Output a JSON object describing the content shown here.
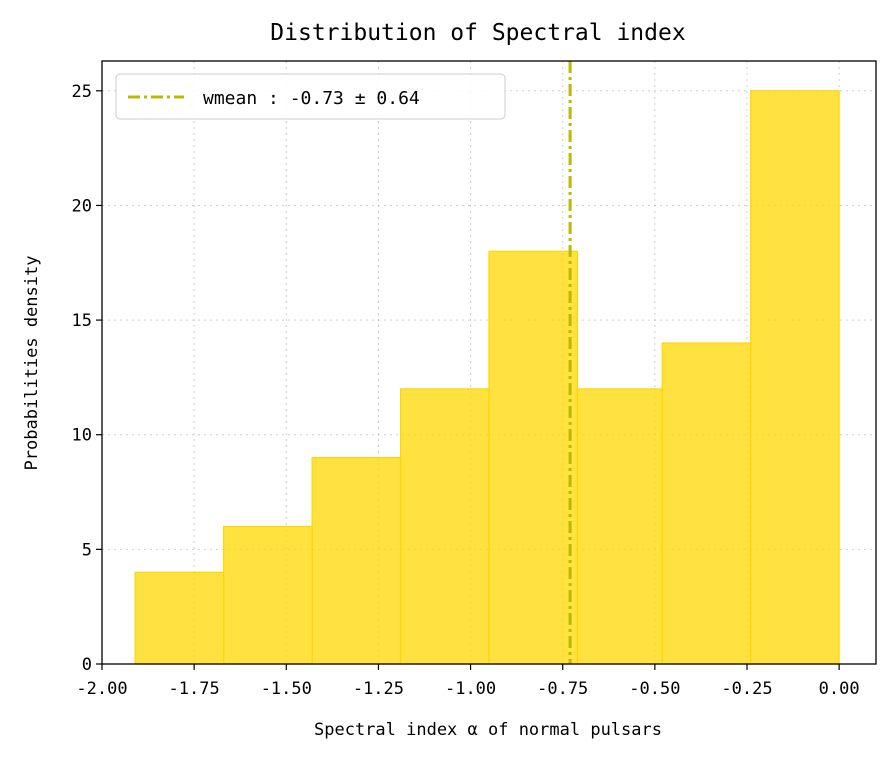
{
  "chart_data": {
    "type": "bar",
    "title": "Distribution of Spectral index",
    "xlabel": "Spectral index α of normal pulsars",
    "ylabel": "Probabilities density",
    "xlim": [
      -2.0,
      0.1
    ],
    "ylim": [
      0,
      26.3
    ],
    "xticks": [
      -2.0,
      -1.75,
      -1.5,
      -1.25,
      -1.0,
      -0.75,
      -0.5,
      -0.25,
      0.0
    ],
    "xtick_labels": [
      "-2.00",
      "-1.75",
      "-1.50",
      "-1.25",
      "-1.00",
      "-0.75",
      "-0.50",
      "-0.25",
      "0.00"
    ],
    "yticks": [
      0,
      5,
      10,
      15,
      20,
      25
    ],
    "ytick_labels": [
      "0",
      "5",
      "10",
      "15",
      "20",
      "25"
    ],
    "bins": [
      {
        "x0": -1.91,
        "x1": -1.67,
        "value": 4
      },
      {
        "x0": -1.67,
        "x1": -1.43,
        "value": 6
      },
      {
        "x0": -1.43,
        "x1": -1.19,
        "value": 9
      },
      {
        "x0": -1.19,
        "x1": -0.95,
        "value": 12
      },
      {
        "x0": -0.95,
        "x1": -0.71,
        "value": 18
      },
      {
        "x0": -0.71,
        "x1": -0.48,
        "value": 12
      },
      {
        "x0": -0.48,
        "x1": -0.24,
        "value": 14
      },
      {
        "x0": -0.24,
        "x1": 0.0,
        "value": 25
      }
    ],
    "bar_color": "#FFD700",
    "vline": {
      "x": -0.73,
      "color": "#BDB800",
      "style": "dashdot"
    },
    "legend": {
      "label": "wmean : -0.73 ± 0.64",
      "placement": "upper-left"
    },
    "grid": true
  }
}
